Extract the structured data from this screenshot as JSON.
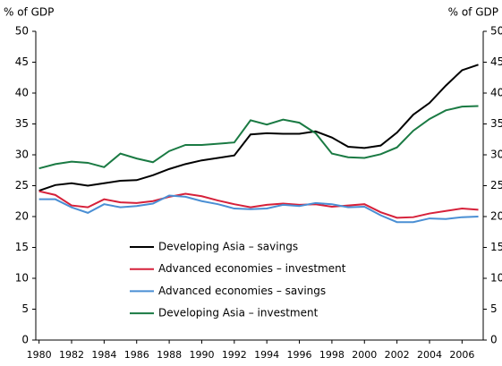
{
  "chart_data": {
    "type": "line",
    "ylabel": "% of GDP",
    "y2label": "% of GDP",
    "x": [
      1980,
      1981,
      1982,
      1983,
      1984,
      1985,
      1986,
      1987,
      1988,
      1989,
      1990,
      1991,
      1992,
      1993,
      1994,
      1995,
      1996,
      1997,
      1998,
      1999,
      2000,
      2001,
      2002,
      2003,
      2004,
      2005,
      2006,
      2007
    ],
    "series": [
      {
        "name": "Developing Asia – savings",
        "color": "#000000",
        "values": [
          24.2,
          25.1,
          25.4,
          25.0,
          25.4,
          25.8,
          25.9,
          26.7,
          27.7,
          28.5,
          29.1,
          29.5,
          29.9,
          33.3,
          33.5,
          33.4,
          33.4,
          33.8,
          32.8,
          31.3,
          31.1,
          31.5,
          33.6,
          36.5,
          38.4,
          41.2,
          43.7,
          44.6
        ]
      },
      {
        "name": "Advanced economies – investment",
        "color": "#d6213a",
        "values": [
          24.1,
          23.5,
          21.8,
          21.5,
          22.8,
          22.3,
          22.2,
          22.5,
          23.2,
          23.7,
          23.3,
          22.6,
          22.0,
          21.5,
          21.9,
          22.1,
          21.9,
          22.0,
          21.6,
          21.8,
          22.0,
          20.7,
          19.8,
          19.9,
          20.5,
          20.9,
          21.3,
          21.1
        ]
      },
      {
        "name": "Advanced economies – savings",
        "color": "#4a8fd4",
        "values": [
          22.8,
          22.8,
          21.5,
          20.6,
          22.0,
          21.5,
          21.7,
          22.1,
          23.4,
          23.2,
          22.5,
          22.0,
          21.3,
          21.2,
          21.3,
          21.9,
          21.7,
          22.2,
          22.0,
          21.5,
          21.6,
          20.2,
          19.1,
          19.1,
          19.7,
          19.6,
          19.9,
          20.0
        ]
      },
      {
        "name": "Developing Asia – investment",
        "color": "#1a7a43",
        "values": [
          27.8,
          28.5,
          28.9,
          28.7,
          28.0,
          30.2,
          29.4,
          28.8,
          30.6,
          31.6,
          31.6,
          31.8,
          32.0,
          35.6,
          34.9,
          35.7,
          35.2,
          33.5,
          30.2,
          29.6,
          29.5,
          30.1,
          31.2,
          33.9,
          35.8,
          37.2,
          37.8,
          37.9
        ]
      }
    ],
    "xlim": [
      1979.8,
      2007.3
    ],
    "xticks": [
      1980,
      1982,
      1984,
      1986,
      1988,
      1990,
      1992,
      1994,
      1996,
      1998,
      2000,
      2002,
      2004,
      2006
    ],
    "ylim": [
      0,
      50
    ],
    "yticks": [
      0,
      5,
      10,
      15,
      20,
      25,
      30,
      35,
      40,
      45,
      50
    ],
    "y2lim": [
      0,
      50
    ],
    "y2ticks": [
      0,
      5,
      10,
      15,
      20,
      25,
      30,
      35,
      40,
      45,
      50
    ],
    "grid": false
  }
}
